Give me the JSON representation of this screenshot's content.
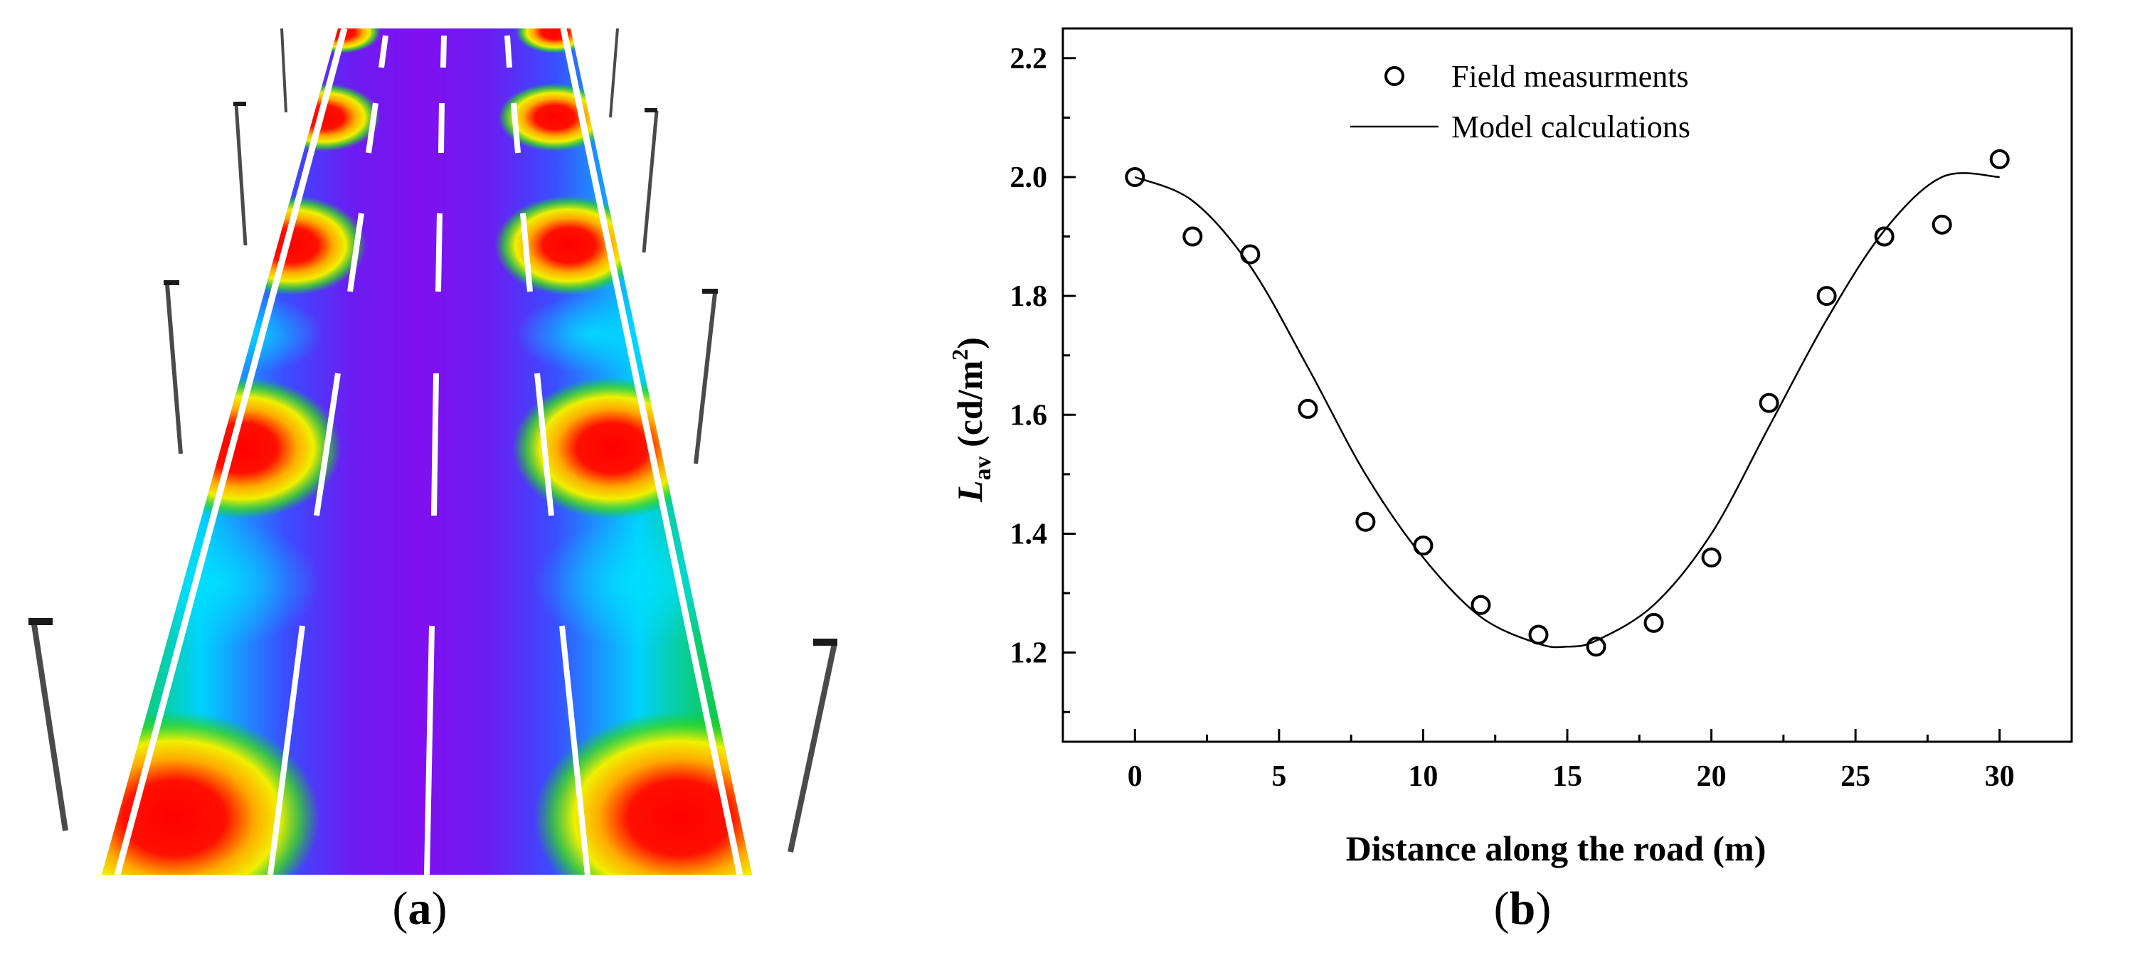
{
  "captions": {
    "a": "a",
    "b": "b"
  },
  "colors": {
    "road_low": "#7a10f0",
    "road_high": "#ff0000",
    "marking": "#ffffff",
    "pole": "#4a4a4a"
  },
  "chart_data": {
    "type": "scatter",
    "xlabel": "Distance along the road (m)",
    "ylabel_main": "L",
    "ylabel_sub": "av",
    "ylabel_unit_pre": "(cd/m",
    "ylabel_unit_sup": "2",
    "ylabel_unit_post": ")",
    "xlim": [
      -2.5,
      32.5
    ],
    "ylim": [
      1.05,
      2.25
    ],
    "xticks": [
      0,
      5,
      10,
      15,
      20,
      25,
      30
    ],
    "xtick_labels": [
      "0",
      "5",
      "10",
      "15",
      "20",
      "25",
      "30"
    ],
    "yticks": [
      1.2,
      1.4,
      1.6,
      1.8,
      2.0,
      2.2
    ],
    "ytick_labels": [
      "1.2",
      "1.4",
      "1.6",
      "1.8",
      "2.0",
      "2.2"
    ],
    "legend": {
      "position": "top-center",
      "entries": [
        "Field measurments",
        "Model calculations"
      ]
    },
    "series": [
      {
        "name": "Field measurments",
        "style": "open-circle",
        "x": [
          0,
          2,
          4,
          6,
          8,
          10,
          12,
          14,
          16,
          18,
          20,
          22,
          24,
          26,
          28,
          30
        ],
        "y": [
          2.0,
          1.9,
          1.87,
          1.61,
          1.42,
          1.38,
          1.28,
          1.23,
          1.21,
          1.25,
          1.36,
          1.62,
          1.8,
          1.9,
          1.92,
          2.03
        ]
      },
      {
        "name": "Model calculations",
        "style": "line",
        "x": [
          0,
          2,
          4,
          6,
          8,
          10,
          12,
          14,
          15,
          16,
          18,
          20,
          22,
          24,
          26,
          28,
          30
        ],
        "y": [
          2.0,
          1.96,
          1.85,
          1.68,
          1.5,
          1.36,
          1.26,
          1.215,
          1.21,
          1.22,
          1.28,
          1.4,
          1.58,
          1.76,
          1.91,
          2.0,
          2.0
        ]
      }
    ]
  }
}
